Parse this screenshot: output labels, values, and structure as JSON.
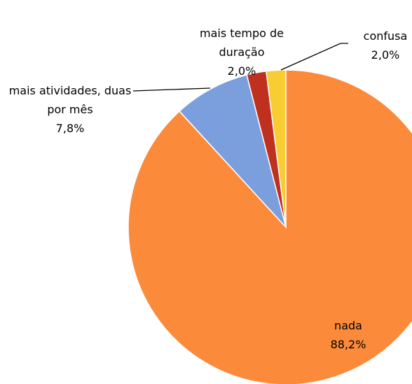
{
  "chart_data": {
    "type": "pie",
    "categories": [
      "nada",
      "mais atividades, duas por mês",
      "mais tempo de duração",
      "confusa"
    ],
    "values": [
      88.2,
      7.8,
      2.0,
      2.0
    ],
    "value_labels": [
      "88,2%",
      "7,8%",
      "2,0%",
      "2,0%"
    ],
    "colors": [
      "#fb8a3a",
      "#7b9edd",
      "#c0301f",
      "#f7cd33"
    ]
  }
}
